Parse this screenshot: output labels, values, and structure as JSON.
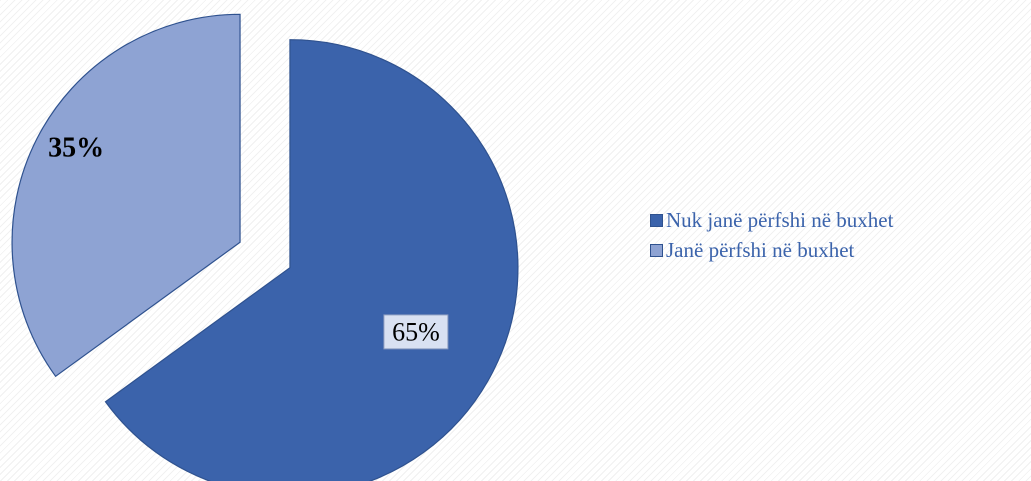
{
  "chart_data": {
    "type": "pie",
    "title": "",
    "categories": [
      "Nuk janë përfshi në buxhet",
      "Janë përfshi në buxhet"
    ],
    "values": [
      65,
      35
    ],
    "data_labels": [
      "65%",
      "35%"
    ],
    "colors": [
      "#3b63ab",
      "#8ea3d3"
    ],
    "exploded": true,
    "legend_position": "right"
  },
  "legend": {
    "items": [
      {
        "label": "Nuk janë përfshi në buxhet",
        "color": "#3b63ab"
      },
      {
        "label": "Janë përfshi në buxhet",
        "color": "#8ea3d3"
      }
    ],
    "text_color": "#3b63ab"
  }
}
